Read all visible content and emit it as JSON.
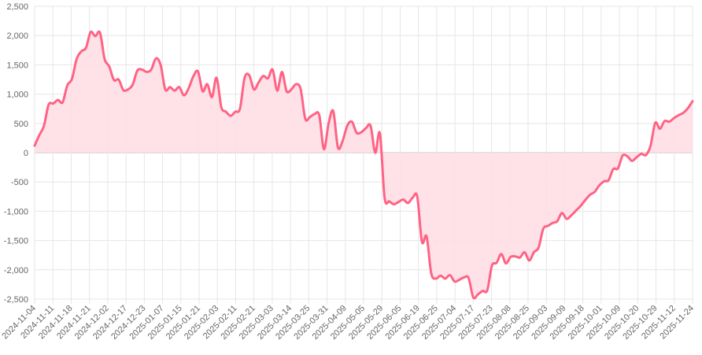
{
  "chart_data": {
    "type": "area",
    "title": "",
    "xlabel": "",
    "ylabel": "",
    "ylim": [
      -2500,
      2500
    ],
    "y_ticks": [
      2500,
      2000,
      1500,
      1000,
      500,
      0,
      -500,
      -1000,
      -1500,
      -2000,
      -2500
    ],
    "y_tick_labels": [
      "2,500",
      "2,000",
      "1,500",
      "1,000",
      "500",
      "0",
      "-500",
      "-1,000",
      "-1,500",
      "-2,000",
      "-2,500"
    ],
    "x_tick_labels": [
      "2024-11-04",
      "2024-11-11",
      "2024-11-18",
      "2024-11-21",
      "2024-12-02",
      "2024-12-17",
      "2024-12-23",
      "2025-01-07",
      "2025-01-15",
      "2025-01-21",
      "2025-02-03",
      "2025-02-11",
      "2025-02-21",
      "2025-03-03",
      "2025-03-14",
      "2025-03-25",
      "2025-03-31",
      "2025-04-09",
      "2025-05-05",
      "2025-05-29",
      "2025-06-05",
      "2025-06-19",
      "2025-06-25",
      "2025-07-04",
      "2025-07-17",
      "2025-07-23",
      "2025-08-08",
      "2025-08-25",
      "2025-09-03",
      "2025-09-09",
      "2025-09-18",
      "2025-10-01",
      "2025-10-09",
      "2025-10-20",
      "2025-10-29",
      "2025-11-12",
      "2025-11-24"
    ],
    "grid": true,
    "legend": "none",
    "colors": {
      "line": "#ff6384",
      "fill": "#ffdde4",
      "grid": "#e6e6e6",
      "zero_line": "#bdbdbd",
      "axis_text": "#666666"
    },
    "values": [
      120,
      300,
      460,
      820,
      840,
      900,
      860,
      1150,
      1260,
      1600,
      1730,
      1790,
      2060,
      1990,
      2050,
      1600,
      1470,
      1240,
      1250,
      1070,
      1080,
      1160,
      1400,
      1420,
      1380,
      1420,
      1610,
      1500,
      1080,
      1120,
      1060,
      1120,
      980,
      1100,
      1300,
      1390,
      1050,
      1170,
      950,
      1280,
      780,
      700,
      630,
      700,
      750,
      1280,
      1320,
      1080,
      1200,
      1310,
      1270,
      1420,
      1060,
      1380,
      1050,
      1080,
      1170,
      1090,
      580,
      610,
      660,
      640,
      60,
      500,
      710,
      90,
      200,
      460,
      530,
      340,
      350,
      420,
      460,
      0,
      330,
      -770,
      -830,
      -880,
      -840,
      -800,
      -860,
      -770,
      -750,
      -1520,
      -1430,
      -2060,
      -2150,
      -2100,
      -2150,
      -2090,
      -2200,
      -2170,
      -2130,
      -2140,
      -2470,
      -2420,
      -2360,
      -2350,
      -1930,
      -1880,
      -1730,
      -1890,
      -1780,
      -1770,
      -1790,
      -1700,
      -1840,
      -1700,
      -1620,
      -1300,
      -1250,
      -1200,
      -1170,
      -1030,
      -1130,
      -1070,
      -990,
      -910,
      -810,
      -720,
      -670,
      -560,
      -490,
      -470,
      -280,
      -270,
      -50,
      -60,
      -140,
      -80,
      -20,
      -40,
      120,
      510,
      410,
      540,
      530,
      590,
      640,
      680,
      760,
      880
    ]
  }
}
